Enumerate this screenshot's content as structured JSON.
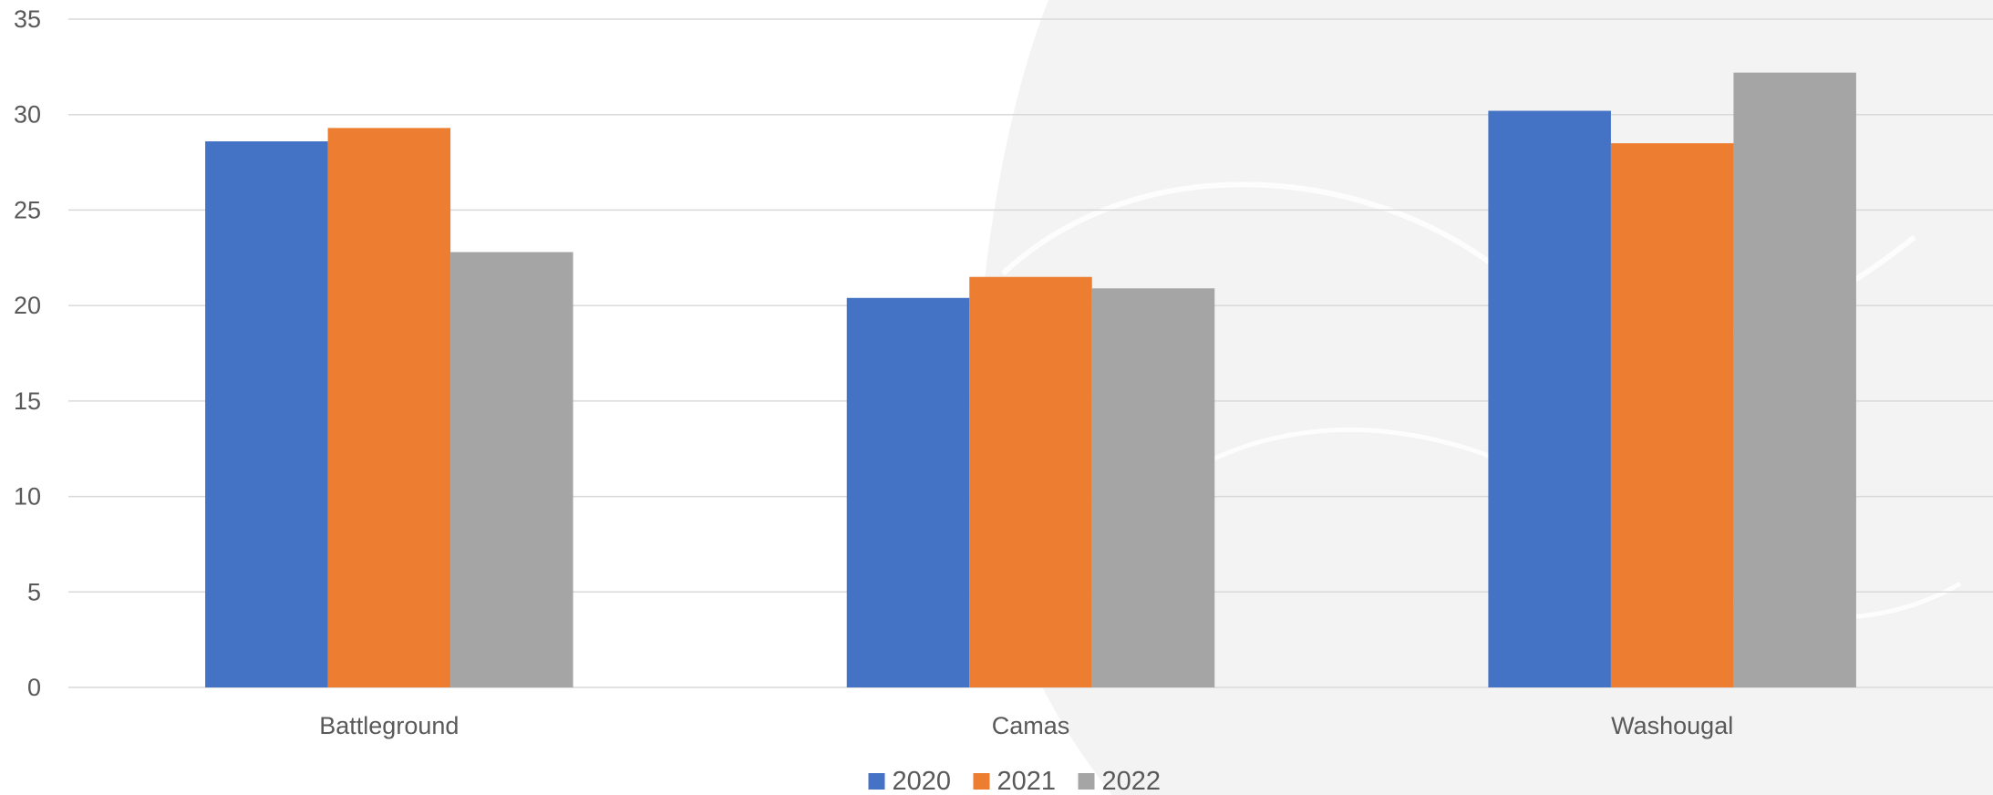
{
  "chart_data": {
    "type": "bar",
    "title": "",
    "xlabel": "",
    "ylabel": "",
    "categories": [
      "Battleground",
      "Camas",
      "Washougal"
    ],
    "series": [
      {
        "name": "2020",
        "values": [
          28.6,
          20.4,
          30.2
        ],
        "color": "#4472C4"
      },
      {
        "name": "2021",
        "values": [
          29.3,
          21.5,
          28.5
        ],
        "color": "#ED7D31"
      },
      {
        "name": "2022",
        "values": [
          22.8,
          20.9,
          32.2
        ],
        "color": "#A5A5A5"
      }
    ],
    "ylim": [
      0,
      35
    ],
    "yticks": [
      0,
      5,
      10,
      15,
      20,
      25,
      30,
      35
    ],
    "grid": true,
    "legend": "bottom-center",
    "colors": {
      "gridline": "#D9D9D9",
      "text": "#595959",
      "watermark": "#F3F3F3"
    }
  }
}
